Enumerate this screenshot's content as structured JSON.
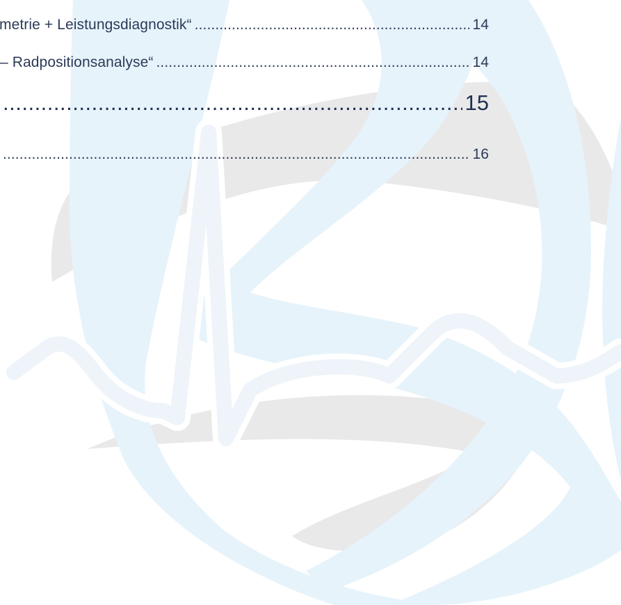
{
  "toc": {
    "entries": [
      {
        "text": "metrie + Leistungsdiagnostik“",
        "page": "14"
      },
      {
        "text": "– Radpositionsanalyse“",
        "page": "14"
      },
      {
        "text": "",
        "page": "15"
      },
      {
        "text": "",
        "page": "16"
      }
    ]
  },
  "colors": {
    "text": "#2b3a57",
    "watermark_blue": "#e7f3fb",
    "watermark_gray": "#e9e9ea"
  },
  "icons": {
    "watermark": "heartbeat-globe-logo"
  }
}
